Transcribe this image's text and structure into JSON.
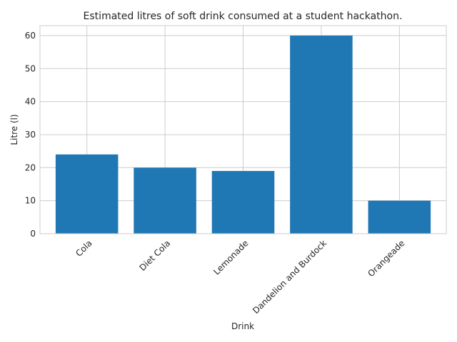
{
  "chart_data": {
    "type": "bar",
    "title": "Estimated litres of soft drink consumed at a student hackathon.",
    "xlabel": "Drink",
    "ylabel": "Litre (l)",
    "categories": [
      "Cola",
      "Diet Cola",
      "Lemonade",
      "Dandelion and Burdock",
      "Orangeade"
    ],
    "values": [
      24,
      20,
      19,
      60,
      10
    ],
    "ylim": [
      0,
      63
    ],
    "yticks": [
      "0",
      "10",
      "20",
      "30",
      "40",
      "50",
      "60"
    ],
    "grid": true,
    "bar_color": "#1f77b4",
    "grid_color": "#cccccc",
    "frame_color": "#cccccc"
  }
}
